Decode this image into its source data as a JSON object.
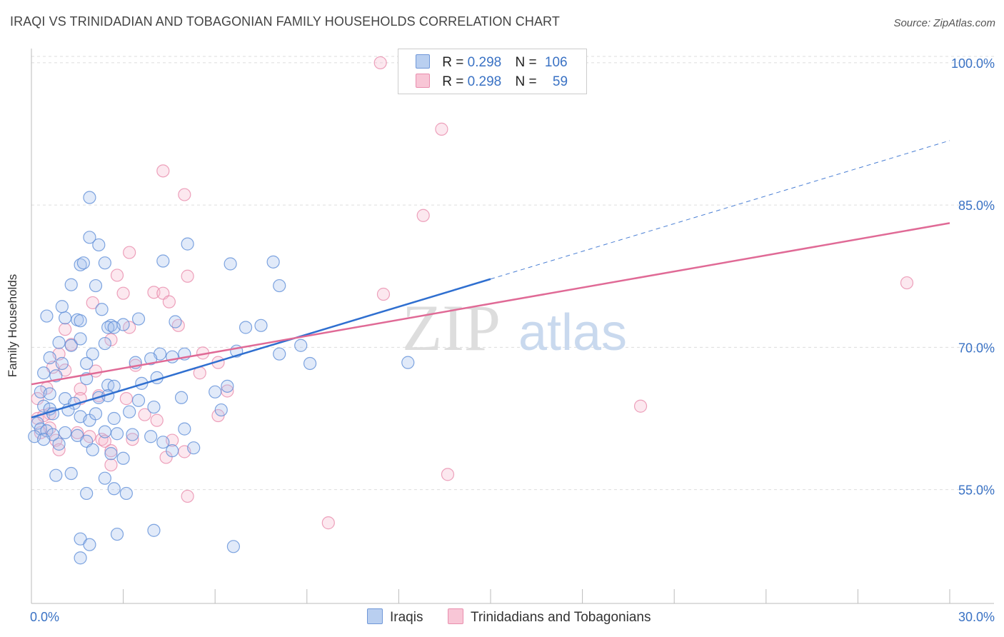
{
  "title": "IRAQI VS TRINIDADIAN AND TOBAGONIAN FAMILY HOUSEHOLDS CORRELATION CHART",
  "source": "Source: ZipAtlas.com",
  "watermark": {
    "zip": "ZIP",
    "atlas": "atlas"
  },
  "legend": {
    "rows": [
      {
        "r_label": "R =",
        "r_value": "0.298",
        "n_label": "N =",
        "n_value": "106",
        "color": "#4a7fd4"
      },
      {
        "r_label": "R =",
        "r_value": "0.298",
        "n_label": "N =",
        "n_value": "59",
        "color": "#e5799e"
      }
    ]
  },
  "bottom_legend": {
    "iraqis": "Iraqis",
    "trin": "Trinidadians and Tobagonians"
  },
  "colors": {
    "iraqi": "#4a7fd4",
    "trin": "#e5799e",
    "axis_label": "#3a72c4"
  },
  "chart_data": {
    "type": "scatter",
    "title": "IRAQI VS TRINIDADIAN AND TOBAGONIAN FAMILY HOUSEHOLDS CORRELATION CHART",
    "xlabel": "",
    "ylabel": "Family Households",
    "xlim": [
      0,
      30
    ],
    "ylim": [
      43,
      101.5
    ],
    "x_tick_labels": [
      "0.0%",
      "30.0%"
    ],
    "y_ticks": [
      55,
      70,
      85,
      100
    ],
    "y_tick_labels": [
      "55.0%",
      "70.0%",
      "85.0%",
      "100.0%"
    ],
    "grid": true,
    "series": [
      {
        "name": "Iraqis",
        "color": "#4a7fd4",
        "trend": {
          "x0": 0,
          "y0": 62.6,
          "x1": 15,
          "y1": 77.2,
          "x_dash_end": 30,
          "y_dash_end": 91.8
        },
        "points": [
          [
            1.9,
            85.8
          ],
          [
            1.9,
            81.6
          ],
          [
            2.2,
            80.8
          ],
          [
            2.4,
            78.9
          ],
          [
            1.6,
            78.7
          ],
          [
            1.7,
            78.9
          ],
          [
            2.1,
            76.5
          ],
          [
            1.3,
            76.6
          ],
          [
            0.5,
            73.3
          ],
          [
            1.1,
            73.1
          ],
          [
            1.5,
            72.9
          ],
          [
            1.6,
            72.8
          ],
          [
            2.6,
            72.3
          ],
          [
            2.5,
            72.1
          ],
          [
            3.0,
            72.4
          ],
          [
            2.7,
            72.1
          ],
          [
            0.9,
            70.5
          ],
          [
            1.3,
            70.2
          ],
          [
            1.6,
            70.9
          ],
          [
            2.0,
            69.3
          ],
          [
            2.4,
            70.4
          ],
          [
            4.2,
            69.3
          ],
          [
            3.9,
            68.8
          ],
          [
            3.4,
            68.4
          ],
          [
            0.6,
            68.9
          ],
          [
            1.0,
            68.3
          ],
          [
            1.8,
            68.3
          ],
          [
            0.4,
            67.3
          ],
          [
            0.8,
            67.0
          ],
          [
            1.8,
            66.7
          ],
          [
            2.5,
            66.0
          ],
          [
            2.7,
            65.9
          ],
          [
            3.6,
            66.2
          ],
          [
            4.1,
            66.8
          ],
          [
            0.3,
            65.3
          ],
          [
            0.6,
            65.1
          ],
          [
            1.1,
            64.6
          ],
          [
            1.4,
            64.1
          ],
          [
            2.2,
            64.7
          ],
          [
            2.5,
            64.9
          ],
          [
            3.5,
            64.4
          ],
          [
            4.9,
            64.7
          ],
          [
            0.4,
            63.8
          ],
          [
            0.6,
            63.5
          ],
          [
            0.7,
            63.0
          ],
          [
            1.2,
            63.4
          ],
          [
            1.6,
            62.7
          ],
          [
            1.9,
            62.3
          ],
          [
            2.1,
            63.0
          ],
          [
            2.7,
            62.5
          ],
          [
            3.2,
            63.2
          ],
          [
            4.0,
            63.7
          ],
          [
            6.4,
            65.9
          ],
          [
            6.0,
            65.3
          ],
          [
            6.2,
            63.4
          ],
          [
            0.2,
            62.0
          ],
          [
            0.3,
            61.4
          ],
          [
            0.5,
            61.2
          ],
          [
            0.7,
            60.8
          ],
          [
            1.1,
            61.0
          ],
          [
            1.5,
            60.7
          ],
          [
            1.8,
            60.1
          ],
          [
            2.4,
            61.1
          ],
          [
            2.8,
            60.9
          ],
          [
            3.3,
            60.8
          ],
          [
            3.9,
            60.6
          ],
          [
            4.3,
            60.0
          ],
          [
            5.0,
            61.4
          ],
          [
            0.1,
            60.6
          ],
          [
            0.4,
            60.3
          ],
          [
            0.9,
            59.8
          ],
          [
            2.0,
            59.2
          ],
          [
            2.6,
            58.8
          ],
          [
            3.0,
            58.3
          ],
          [
            4.6,
            59.1
          ],
          [
            5.3,
            59.4
          ],
          [
            0.8,
            56.5
          ],
          [
            1.3,
            56.7
          ],
          [
            2.4,
            56.2
          ],
          [
            1.8,
            54.6
          ],
          [
            2.7,
            55.1
          ],
          [
            3.1,
            54.6
          ],
          [
            4.0,
            50.7
          ],
          [
            2.8,
            50.3
          ],
          [
            1.6,
            49.8
          ],
          [
            1.9,
            49.2
          ],
          [
            1.6,
            47.8
          ],
          [
            6.6,
            49.0
          ],
          [
            5.0,
            69.3
          ],
          [
            4.6,
            69.0
          ],
          [
            6.7,
            69.6
          ],
          [
            8.1,
            69.3
          ],
          [
            9.1,
            68.3
          ],
          [
            12.3,
            68.4
          ],
          [
            7.0,
            72.1
          ],
          [
            7.5,
            72.3
          ],
          [
            8.8,
            70.2
          ],
          [
            4.7,
            72.7
          ],
          [
            3.5,
            73.0
          ],
          [
            1.0,
            74.3
          ],
          [
            2.3,
            74.0
          ],
          [
            8.1,
            76.5
          ],
          [
            6.5,
            78.8
          ],
          [
            7.9,
            79.0
          ],
          [
            4.3,
            79.1
          ],
          [
            5.1,
            80.9
          ]
        ]
      },
      {
        "name": "Trinidadians and Tobagonians",
        "color": "#e5799e",
        "trend": {
          "x0": 0,
          "y0": 66.1,
          "x1": 30,
          "y1": 83.1
        },
        "points": [
          [
            11.4,
            100.0
          ],
          [
            13.4,
            93.0
          ],
          [
            4.3,
            88.6
          ],
          [
            5.0,
            86.1
          ],
          [
            12.8,
            83.9
          ],
          [
            3.2,
            80.0
          ],
          [
            2.8,
            77.6
          ],
          [
            5.1,
            77.5
          ],
          [
            4.0,
            75.8
          ],
          [
            4.3,
            75.7
          ],
          [
            4.5,
            74.8
          ],
          [
            2.0,
            74.7
          ],
          [
            3.0,
            75.7
          ],
          [
            11.5,
            75.6
          ],
          [
            1.1,
            71.9
          ],
          [
            3.2,
            72.1
          ],
          [
            4.8,
            72.3
          ],
          [
            2.6,
            70.8
          ],
          [
            1.3,
            70.3
          ],
          [
            0.9,
            69.3
          ],
          [
            5.6,
            69.4
          ],
          [
            6.1,
            68.4
          ],
          [
            3.4,
            68.1
          ],
          [
            1.1,
            67.6
          ],
          [
            2.1,
            67.5
          ],
          [
            0.7,
            67.9
          ],
          [
            5.5,
            67.3
          ],
          [
            6.4,
            65.4
          ],
          [
            0.5,
            65.7
          ],
          [
            1.6,
            65.6
          ],
          [
            2.2,
            64.9
          ],
          [
            1.6,
            64.6
          ],
          [
            3.1,
            64.6
          ],
          [
            0.2,
            64.6
          ],
          [
            0.6,
            63.0
          ],
          [
            4.1,
            62.3
          ],
          [
            3.7,
            62.9
          ],
          [
            6.1,
            62.8
          ],
          [
            19.9,
            63.8
          ],
          [
            0.2,
            62.5
          ],
          [
            0.6,
            61.5
          ],
          [
            0.3,
            61.0
          ],
          [
            1.5,
            61.0
          ],
          [
            1.9,
            60.6
          ],
          [
            2.3,
            60.3
          ],
          [
            2.4,
            60.1
          ],
          [
            0.8,
            60.2
          ],
          [
            0.9,
            59.2
          ],
          [
            2.6,
            59.1
          ],
          [
            3.3,
            60.3
          ],
          [
            4.6,
            60.2
          ],
          [
            5.0,
            59.0
          ],
          [
            4.4,
            58.4
          ],
          [
            2.6,
            57.6
          ],
          [
            13.6,
            56.6
          ],
          [
            5.1,
            54.3
          ],
          [
            9.7,
            51.5
          ],
          [
            28.6,
            76.8
          ],
          [
            0.4,
            62.8
          ]
        ]
      }
    ]
  }
}
